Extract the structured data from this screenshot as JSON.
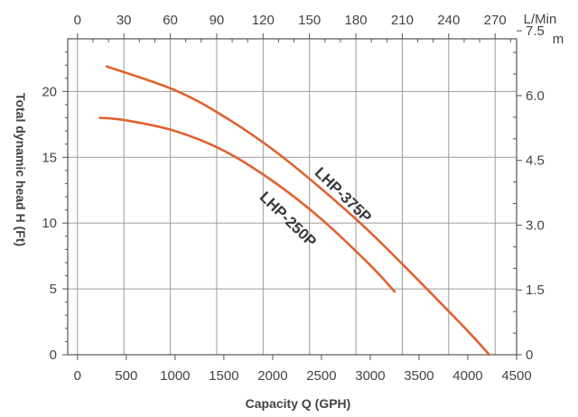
{
  "chart_data": {
    "type": "line",
    "title": "",
    "xlabel": "Capacity Q (GPH)",
    "ylabel": "Total dynamic head H (Ft)",
    "xlim": [
      -100,
      4500
    ],
    "ylim": [
      0,
      24
    ],
    "x_ticks": [
      "0",
      "500",
      "1000",
      "1500",
      "2000",
      "2500",
      "3000",
      "3500",
      "4000",
      "4500"
    ],
    "y_ticks": [
      "0",
      "5",
      "10",
      "15",
      "20"
    ],
    "top_axis": {
      "label": "L/Min",
      "ticks": [
        "0",
        "30",
        "60",
        "90",
        "120",
        "150",
        "180",
        "210",
        "240",
        "270"
      ]
    },
    "right_axis": {
      "label": "m",
      "ticks": [
        "0",
        "1.5",
        "3.0",
        "4.5",
        "6.0",
        "7.5"
      ]
    },
    "grid": true,
    "series": [
      {
        "name": "LHP-375P",
        "color": "#e0622f",
        "x": [
          300,
          1000,
          1500,
          2000,
          2500,
          3000,
          3500,
          4000,
          4220
        ],
        "y": [
          21.9,
          20.1,
          18.1,
          15.6,
          12.6,
          9.3,
          5.6,
          1.8,
          0
        ]
      },
      {
        "name": "LHP-250P",
        "color": "#e0622f",
        "x": [
          230,
          500,
          1000,
          1500,
          2000,
          2500,
          3000,
          3250
        ],
        "y": [
          18.0,
          17.8,
          17.0,
          15.5,
          13.2,
          10.3,
          6.8,
          4.8
        ]
      }
    ]
  }
}
